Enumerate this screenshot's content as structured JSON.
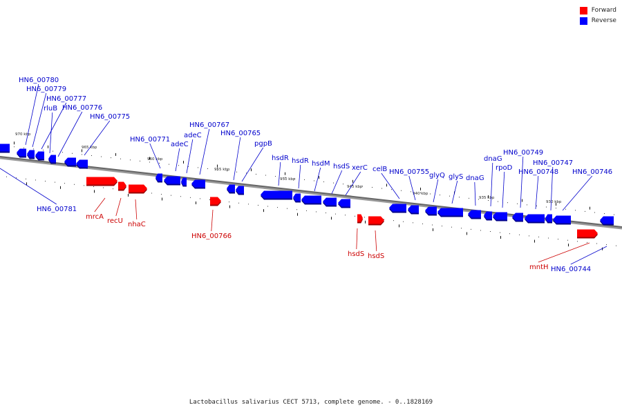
{
  "legend": [
    {
      "label": "Forward",
      "color": "#ff0000"
    },
    {
      "label": "Reverse",
      "color": "#0000ff"
    }
  ],
  "caption": "Lactobacillus salivarius CECT 5713, complete genome. - 0..1828169",
  "kbp_labels": [
    "970 kbp",
    "965 kbp",
    "960 kbp",
    "955 kbp",
    "950 kbp",
    "945 kbp",
    "940 kbp",
    "935 kbp",
    "930 kbp"
  ],
  "genes": [
    {
      "name": "HN6_00780",
      "strand": "reverse"
    },
    {
      "name": "HN6_00779",
      "strand": "reverse"
    },
    {
      "name": "HN6_00777",
      "strand": "reverse"
    },
    {
      "name": "rluB",
      "strand": "reverse"
    },
    {
      "name": "HN6_00776",
      "strand": "reverse"
    },
    {
      "name": "HN6_00775",
      "strand": "reverse"
    },
    {
      "name": "HN6_00781",
      "strand": "reverse"
    },
    {
      "name": "mrcA",
      "strand": "forward"
    },
    {
      "name": "recU",
      "strand": "forward"
    },
    {
      "name": "nhaC",
      "strand": "forward"
    },
    {
      "name": "HN6_00771",
      "strand": "reverse"
    },
    {
      "name": "adeC",
      "strand": "reverse"
    },
    {
      "name": "adeC",
      "strand": "reverse"
    },
    {
      "name": "HN6_00767",
      "strand": "reverse"
    },
    {
      "name": "HN6_00766",
      "strand": "forward"
    },
    {
      "name": "HN6_00765",
      "strand": "reverse"
    },
    {
      "name": "pgpB",
      "strand": "reverse"
    },
    {
      "name": "hsdR",
      "strand": "reverse"
    },
    {
      "name": "hsdR",
      "strand": "reverse"
    },
    {
      "name": "hsdM",
      "strand": "reverse"
    },
    {
      "name": "hsdS",
      "strand": "reverse"
    },
    {
      "name": "xerC",
      "strand": "reverse"
    },
    {
      "name": "hsdS",
      "strand": "forward"
    },
    {
      "name": "hsdS",
      "strand": "forward"
    },
    {
      "name": "celB",
      "strand": "reverse"
    },
    {
      "name": "HN6_00755",
      "strand": "reverse"
    },
    {
      "name": "glyQ",
      "strand": "reverse"
    },
    {
      "name": "glyS",
      "strand": "reverse"
    },
    {
      "name": "dnaG",
      "strand": "reverse"
    },
    {
      "name": "dnaG",
      "strand": "reverse"
    },
    {
      "name": "rpoD",
      "strand": "reverse"
    },
    {
      "name": "HN6_00749",
      "strand": "reverse"
    },
    {
      "name": "HN6_00748",
      "strand": "reverse"
    },
    {
      "name": "HN6_00747",
      "strand": "reverse"
    },
    {
      "name": "HN6_00746",
      "strand": "reverse"
    },
    {
      "name": "mntH",
      "strand": "forward"
    },
    {
      "name": "HN6_00744",
      "strand": "reverse"
    }
  ]
}
